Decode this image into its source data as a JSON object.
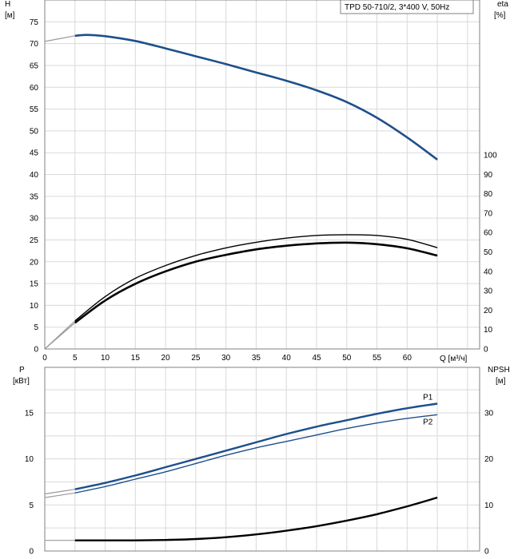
{
  "chart_data": [
    {
      "type": "line",
      "title": "TPD 50-710/2, 3*400 V, 50Hz",
      "xlabel": "Q [м³/ч]",
      "ylabel_left": "H",
      "ylabel_left_unit": "[м]",
      "ylabel_right": "eta",
      "ylabel_right_unit": "[%]",
      "xlim": [
        0,
        72
      ],
      "ylim_left": [
        0,
        80
      ],
      "ylim_right": [
        0,
        100
      ],
      "x_ticks": [
        0,
        5,
        10,
        15,
        20,
        25,
        30,
        35,
        40,
        45,
        50,
        55,
        60
      ],
      "y_left_ticks": [
        0,
        5,
        10,
        15,
        20,
        25,
        30,
        35,
        40,
        45,
        50,
        55,
        60,
        65,
        70,
        75
      ],
      "y_right_ticks": [
        0,
        10,
        20,
        30,
        40,
        50,
        60,
        70,
        80,
        90,
        100
      ],
      "grid": true,
      "series": [
        {
          "axis": "left",
          "color": "#1d4f8c",
          "x": [
            0,
            5,
            7,
            10,
            15,
            20,
            25,
            30,
            35,
            40,
            45,
            50,
            55,
            60,
            65
          ],
          "y": [
            70.5,
            71.8,
            72.0,
            71.7,
            70.6,
            68.9,
            67.1,
            65.3,
            63.4,
            61.5,
            59.3,
            56.6,
            53.0,
            48.5,
            43.4
          ],
          "extrapolated_below_x": 5
        },
        {
          "axis": "right",
          "color": "#000000",
          "x": [
            0,
            5,
            10,
            15,
            20,
            25,
            30,
            35,
            40,
            45,
            50,
            55,
            60,
            65
          ],
          "y": [
            0,
            14.5,
            27.0,
            36.4,
            43.0,
            48.2,
            52.1,
            55.0,
            57.1,
            58.5,
            58.9,
            58.5,
            56.5,
            52.2
          ],
          "extrapolated_below_x": 5
        },
        {
          "axis": "right",
          "color": "#000000",
          "x": [
            0,
            5,
            10,
            15,
            20,
            25,
            30,
            35,
            40,
            45,
            50,
            55,
            60,
            65
          ],
          "y": [
            0,
            13.5,
            25.0,
            33.6,
            40.0,
            45.0,
            48.5,
            51.3,
            53.2,
            54.4,
            54.8,
            54.0,
            51.9,
            48.1
          ],
          "extrapolated_below_x": 5
        }
      ]
    },
    {
      "type": "line",
      "xlim": [
        0,
        72
      ],
      "ylabel_left": "P",
      "ylabel_left_unit": "[кВт]",
      "ylabel_right": "NPSH",
      "ylabel_right_unit": "[м]",
      "ylim_left": [
        0,
        18.5
      ],
      "ylim_right": [
        0,
        37
      ],
      "y_left_ticks": [
        0,
        5,
        10,
        15
      ],
      "y_right_ticks": [
        0,
        10,
        20,
        30
      ],
      "grid": true,
      "series": [
        {
          "name": "P1",
          "axis": "left",
          "color": "#1d4f8c",
          "x": [
            0,
            5,
            10,
            15,
            20,
            25,
            30,
            35,
            40,
            45,
            50,
            55,
            60,
            65
          ],
          "y": [
            6.2,
            6.7,
            7.4,
            8.2,
            9.1,
            10.0,
            10.9,
            11.8,
            12.7,
            13.5,
            14.2,
            14.9,
            15.5,
            16.0
          ],
          "extrapolated_below_x": 5
        },
        {
          "name": "P2",
          "axis": "left",
          "color": "#1d4f8c",
          "x": [
            0,
            5,
            10,
            15,
            20,
            25,
            30,
            35,
            40,
            45,
            50,
            55,
            60,
            65
          ],
          "y": [
            5.8,
            6.3,
            7.0,
            7.8,
            8.6,
            9.5,
            10.4,
            11.2,
            11.9,
            12.6,
            13.3,
            13.9,
            14.4,
            14.8
          ],
          "extrapolated_below_x": 5
        },
        {
          "axis": "right",
          "color": "#000000",
          "x": [
            0,
            5,
            10,
            15,
            20,
            25,
            30,
            35,
            40,
            45,
            50,
            55,
            60,
            65
          ],
          "y": [
            2.3,
            2.3,
            2.3,
            2.3,
            2.4,
            2.6,
            3.0,
            3.6,
            4.4,
            5.4,
            6.6,
            8.0,
            9.7,
            11.6
          ],
          "extrapolated_below_x": 5
        }
      ]
    }
  ]
}
